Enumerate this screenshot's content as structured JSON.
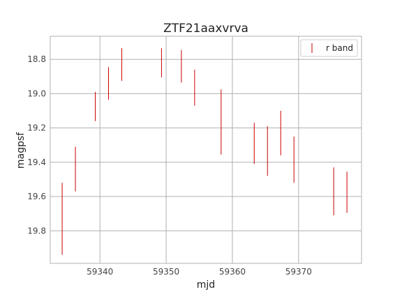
{
  "chart_data": {
    "type": "errorbar",
    "title": "ZTF21aaxvrva",
    "xlabel": "mjd",
    "ylabel": "magpsf",
    "xlim": [
      59332.5,
      59379.5
    ],
    "ylim": [
      19.99,
      18.665
    ],
    "y_inverted": true,
    "grid": true,
    "legend_position": "top-right",
    "x_ticks": [
      59340,
      59350,
      59360,
      59370
    ],
    "x_tick_labels": [
      "59340",
      "59350",
      "59360",
      "59370"
    ],
    "y_ticks": [
      18.8,
      19.0,
      19.2,
      19.4,
      19.6,
      19.8
    ],
    "y_tick_labels": [
      "18.8",
      "19.0",
      "19.2",
      "19.4",
      "19.6",
      "19.8"
    ],
    "series": [
      {
        "name": "r band",
        "color": "#cc0000",
        "points": [
          {
            "x": 59334.3,
            "y": 19.73,
            "err": 0.21
          },
          {
            "x": 59336.3,
            "y": 19.44,
            "err": 0.13
          },
          {
            "x": 59339.3,
            "y": 19.075,
            "err": 0.085
          },
          {
            "x": 59341.3,
            "y": 18.94,
            "err": 0.095
          },
          {
            "x": 59343.3,
            "y": 18.83,
            "err": 0.095
          },
          {
            "x": 59349.3,
            "y": 18.82,
            "err": 0.085
          },
          {
            "x": 59352.3,
            "y": 18.84,
            "err": 0.095
          },
          {
            "x": 59354.3,
            "y": 18.965,
            "err": 0.105
          },
          {
            "x": 59358.3,
            "y": 19.165,
            "err": 0.19
          },
          {
            "x": 59363.3,
            "y": 19.29,
            "err": 0.12
          },
          {
            "x": 59365.3,
            "y": 19.335,
            "err": 0.145
          },
          {
            "x": 59367.3,
            "y": 19.23,
            "err": 0.13
          },
          {
            "x": 59369.3,
            "y": 19.385,
            "err": 0.135
          },
          {
            "x": 59375.3,
            "y": 19.57,
            "err": 0.14
          },
          {
            "x": 59377.3,
            "y": 19.575,
            "err": 0.12
          }
        ]
      }
    ]
  }
}
